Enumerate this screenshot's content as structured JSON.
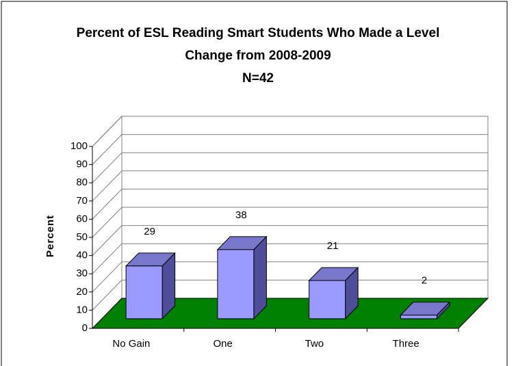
{
  "chart_data": {
    "type": "bar",
    "title": "Percent of ESL Reading Smart Students Who Made a Level Change from 2008-2009",
    "subtitle": "N=42",
    "y_label": "Percent",
    "categories": [
      "No Gain",
      "One",
      "Two",
      "Three"
    ],
    "values": [
      29,
      38,
      21,
      2
    ],
    "color": "#9999ff",
    "floor_color": "#008000",
    "ylim": [
      0,
      100
    ],
    "yticks": [
      0,
      10,
      20,
      30,
      40,
      50,
      60,
      70,
      80,
      90,
      100
    ],
    "grid": true
  }
}
